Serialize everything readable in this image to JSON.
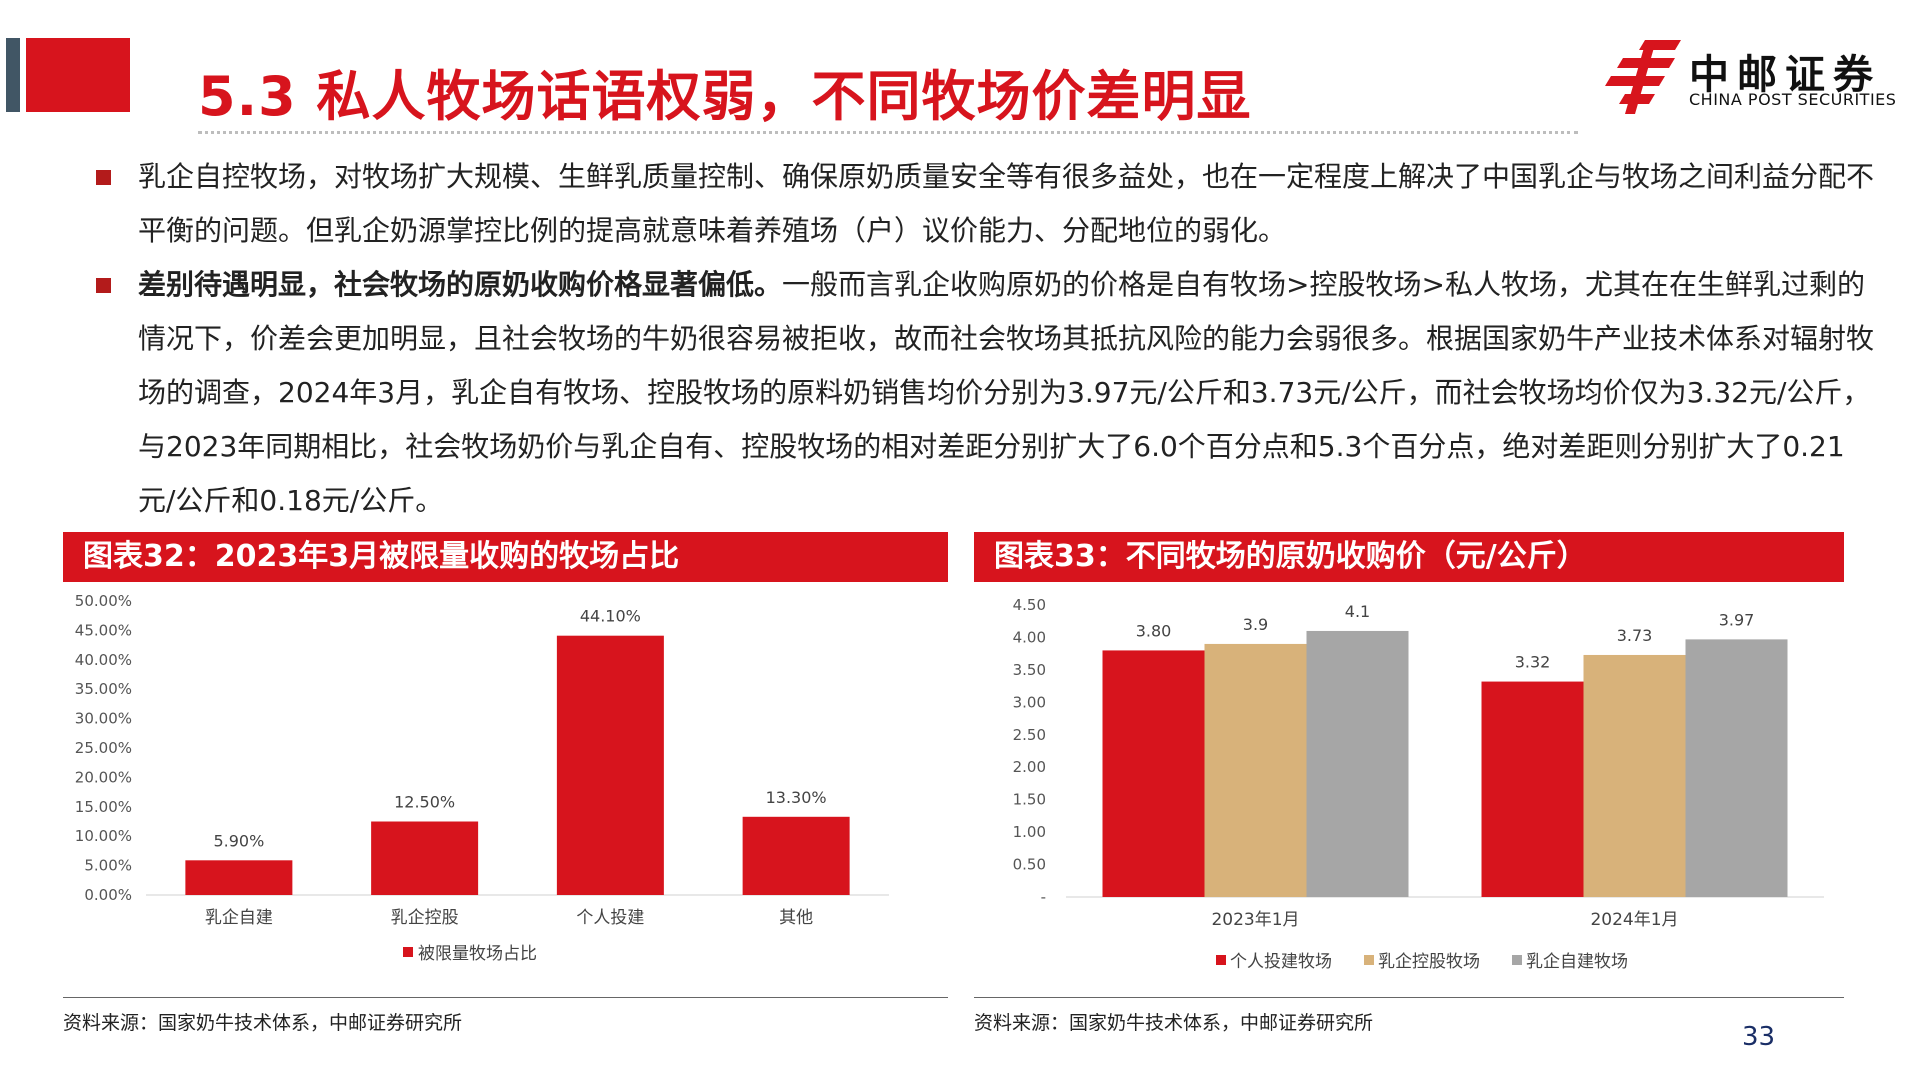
{
  "slide": {
    "title": "5.3 私人牧场话语权弱，不同牧场价差明显",
    "page_number": "33"
  },
  "logo": {
    "name_cn": "中邮证券",
    "name_en": "CHINA POST SECURITIES"
  },
  "bullets": [
    {
      "lead": "",
      "text": "乳企自控牧场，对牧场扩大规模、生鲜乳质量控制、确保原奶质量安全等有很多益处，也在一定程度上解决了中国乳企与牧场之间利益分配不平衡的问题。但乳企奶源掌控比例的提高就意味着养殖场（户）议价能力、分配地位的弱化。"
    },
    {
      "lead": "差别待遇明显，社会牧场的原奶收购价格显著偏低。",
      "text": "一般而言乳企收购原奶的价格是自有牧场>控股牧场>私人牧场，尤其在在生鲜乳过剩的情况下，价差会更加明显，且社会牧场的牛奶很容易被拒收，故而社会牧场其抵抗风险的能力会弱很多。根据国家奶牛产业技术体系对辐射牧场的调查，2024年3月，乳企自有牧场、控股牧场的原料奶销售均价分别为3.97元/公斤和3.73元/公斤，而社会牧场均价仅为3.32元/公斤，与2023年同期相比，社会牧场奶价与乳企自有、控股牧场的相对差距分别扩大了6.0个百分点和5.3个百分点，绝对差距则分别扩大了0.21元/公斤和0.18元/公斤。"
    }
  ],
  "colors": {
    "brand_red": "#d7141d",
    "series_tan": "#d8b27a",
    "series_grey": "#a6a6a6",
    "dark_slate": "#415665"
  },
  "chart_data": [
    {
      "type": "bar",
      "header": "图表32：2023年3月被限量收购的牧场占比",
      "categories": [
        "乳企自建",
        "乳企控股",
        "个人投建",
        "其他"
      ],
      "series": [
        {
          "name": "被限量牧场占比",
          "values": [
            5.9,
            12.5,
            44.1,
            13.3
          ]
        }
      ],
      "data_labels": [
        "5.90%",
        "12.50%",
        "44.10%",
        "13.30%"
      ],
      "ylim": [
        0,
        50
      ],
      "yticks": [
        "0.00%",
        "5.00%",
        "10.00%",
        "15.00%",
        "20.00%",
        "25.00%",
        "30.00%",
        "35.00%",
        "40.00%",
        "45.00%",
        "50.00%"
      ],
      "legend_position": "bottom",
      "grid": false,
      "source": "资料来源：国家奶牛技术体系，中邮证券研究所"
    },
    {
      "type": "bar",
      "header": "图表33：不同牧场的原奶收购价（元/公斤）",
      "categories": [
        "2023年1月",
        "2024年1月"
      ],
      "series": [
        {
          "name": "个人投建牧场",
          "values": [
            3.8,
            3.32
          ],
          "labels": [
            "3.80",
            "3.32"
          ]
        },
        {
          "name": "乳企控股牧场",
          "values": [
            3.9,
            3.73
          ],
          "labels": [
            "3.9",
            "3.73"
          ]
        },
        {
          "name": "乳企自建牧场",
          "values": [
            4.1,
            3.97
          ],
          "labels": [
            "4.1",
            "3.97"
          ]
        }
      ],
      "ylim": [
        0,
        4.5
      ],
      "yticks": [
        "-",
        "0.50",
        "1.00",
        "1.50",
        "2.00",
        "2.50",
        "3.00",
        "3.50",
        "4.00",
        "4.50"
      ],
      "legend_position": "bottom",
      "grid": false,
      "source": "资料来源：国家奶牛技术体系，中邮证券研究所"
    }
  ]
}
